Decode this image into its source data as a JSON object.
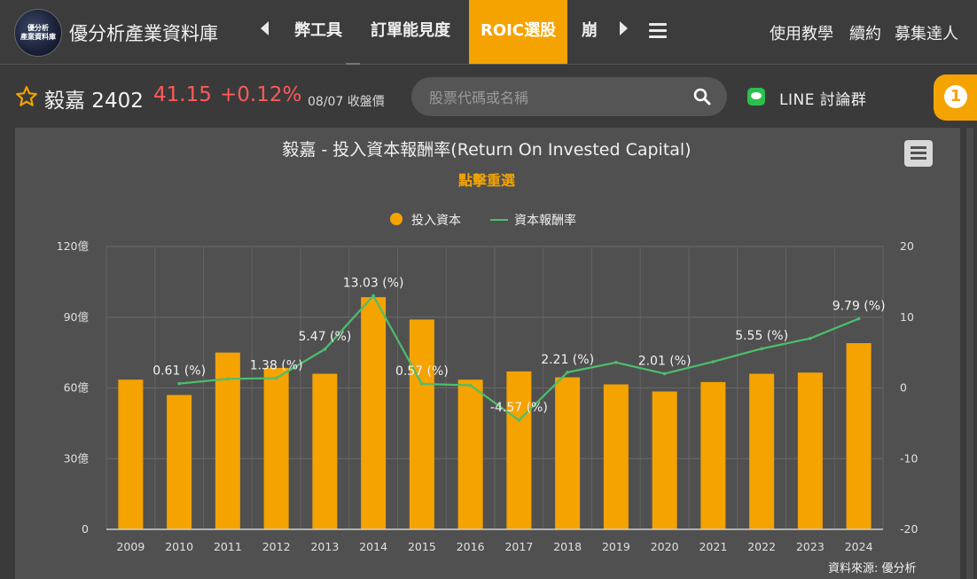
{
  "header": {
    "logo_text_line1": "優分析",
    "logo_text_line2": "產業資料庫",
    "brand": "優分析產業資料庫",
    "nav_items": [
      "弊工具",
      "訂單能見度",
      "ROIC選股",
      "崩"
    ],
    "right_links": [
      "使用教學",
      "續約",
      "募集達人"
    ]
  },
  "stock": {
    "name": "毅嘉 2402",
    "price": "41.15",
    "change": "+0.12%",
    "date_label": "08/07 收盤價"
  },
  "search": {
    "placeholder": "股票代碼或名稱"
  },
  "line_group": {
    "label": "LINE 討論群"
  },
  "notification": {
    "count": "1"
  },
  "chart": {
    "title": "毅嘉 - 投入資本報酬率(Return On Invested Capital)",
    "subtitle": "點擊重選",
    "source": "資料來源: 優分析",
    "legend": [
      "投入資本",
      "資本報酬率"
    ]
  },
  "chart_data": {
    "type": "bar",
    "categories": [
      "2009",
      "2010",
      "2011",
      "2012",
      "2013",
      "2014",
      "2015",
      "2016",
      "2017",
      "2018",
      "2019",
      "2020",
      "2021",
      "2022",
      "2023",
      "2024"
    ],
    "series": [
      {
        "name": "投入資本",
        "type": "bar",
        "axis": "left",
        "color": "#f5a300",
        "values": [
          63.5,
          57,
          75,
          68.5,
          66,
          98.5,
          89,
          63.5,
          67,
          64.5,
          61.5,
          58.5,
          62.5,
          66,
          66.5,
          79
        ]
      },
      {
        "name": "資本報酬率",
        "type": "line",
        "axis": "right",
        "color": "#4dbe6b",
        "values": [
          null,
          0.61,
          1.28,
          1.38,
          5.47,
          13.03,
          0.57,
          0.38,
          -4.57,
          2.21,
          3.6,
          2.01,
          3.7,
          5.55,
          7.0,
          9.79
        ]
      }
    ],
    "point_labels": [
      {
        "category": "2010",
        "text": "0.61 (%)"
      },
      {
        "category": "2012",
        "text": "1.38 (%)"
      },
      {
        "category": "2013",
        "text": "5.47 (%)"
      },
      {
        "category": "2014",
        "text": "13.03 (%)"
      },
      {
        "category": "2015",
        "text": "0.57 (%)"
      },
      {
        "category": "2017",
        "text": "-4.57 (%)"
      },
      {
        "category": "2018",
        "text": "2.21 (%)"
      },
      {
        "category": "2020",
        "text": "2.01 (%)"
      },
      {
        "category": "2022",
        "text": "5.55 (%)"
      },
      {
        "category": "2024",
        "text": "9.79 (%)"
      }
    ],
    "y_left": {
      "ylim": [
        0,
        120
      ],
      "ticks": [
        0,
        30,
        60,
        90,
        120
      ],
      "tick_labels": [
        "0",
        "30億",
        "60億",
        "90億",
        "120億"
      ]
    },
    "y_right": {
      "ylim": [
        -20,
        20
      ],
      "ticks": [
        -20,
        -10,
        0,
        10,
        20
      ],
      "tick_labels": [
        "-20",
        "-10",
        "0",
        "10",
        "20"
      ]
    },
    "grid": true,
    "legend_position": "top-center"
  }
}
